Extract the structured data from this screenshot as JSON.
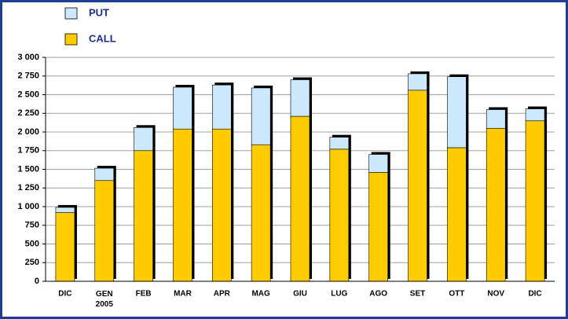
{
  "chart_data": {
    "type": "stacked-bar",
    "categories": [
      "DIC",
      "GEN\n2005",
      "FEB",
      "MAR",
      "APR",
      "MAG",
      "GIU",
      "LUG",
      "AGO",
      "SET",
      "OTT",
      "NOV",
      "DIC"
    ],
    "series": [
      {
        "name": "CALL",
        "color": "#ffcc00",
        "values": [
          920,
          1350,
          1750,
          2040,
          2040,
          1830,
          2210,
          1770,
          1460,
          2560,
          1790,
          2050,
          2150
        ]
      },
      {
        "name": "PUT",
        "color": "#cce8fc",
        "values": [
          70,
          165,
          310,
          560,
          590,
          760,
          490,
          160,
          240,
          220,
          950,
          250,
          160
        ]
      }
    ],
    "ylim": [
      0,
      3000
    ],
    "yticks": [
      0,
      250,
      500,
      750,
      {
        "value": 1000,
        "label": "1 000"
      },
      {
        "value": 1250,
        "label": "1 250"
      },
      {
        "value": 1500,
        "label": "1 500"
      },
      {
        "value": 1750,
        "label": "1 750"
      },
      {
        "value": 2000,
        "label": "2 000"
      },
      {
        "value": 2250,
        "label": "2 250"
      },
      {
        "value": 2500,
        "label": "2 500"
      },
      {
        "value": 2750,
        "label": "2 750"
      },
      {
        "value": 3000,
        "label": "3 000"
      }
    ],
    "grid": true
  }
}
